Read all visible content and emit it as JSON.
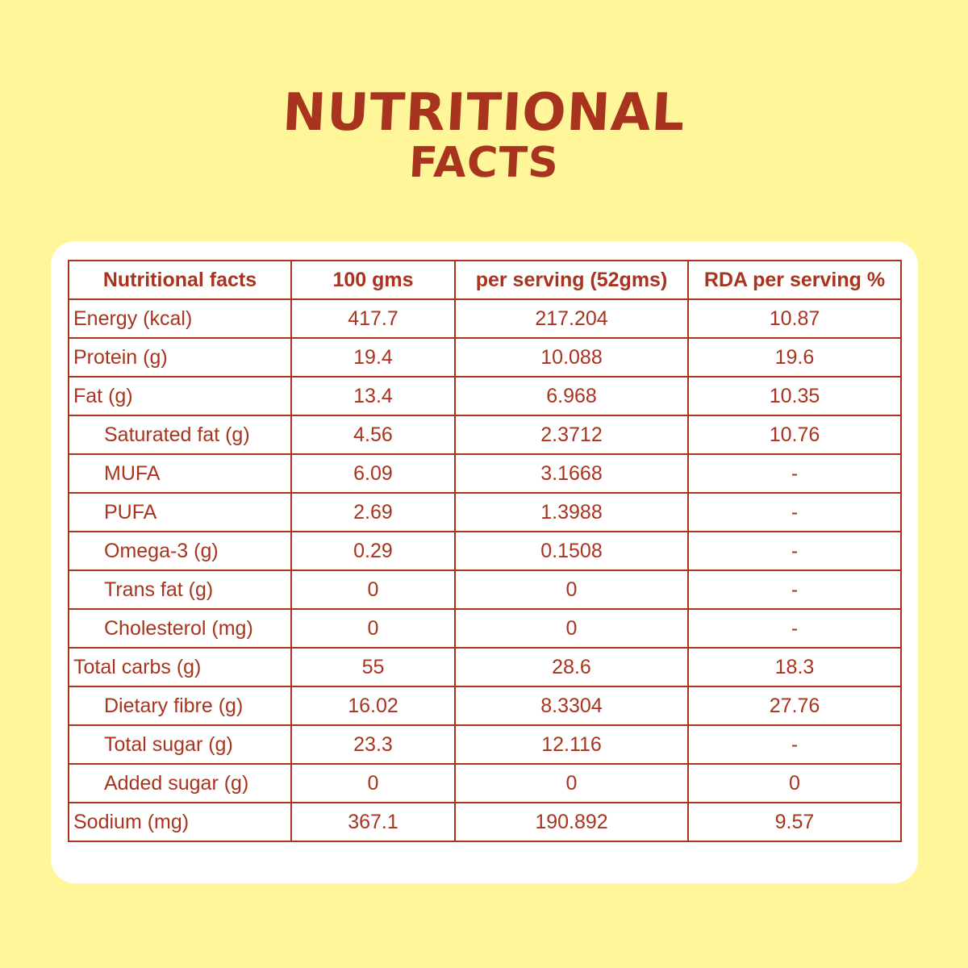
{
  "title": {
    "line1": "Nutritional",
    "line2": "Facts"
  },
  "colors": {
    "background": "#fef699",
    "card": "#ffffff",
    "accent": "#a8341f"
  },
  "table": {
    "headers": [
      "Nutritional facts",
      "100 gms",
      "per serving (52gms)",
      "RDA per serving %"
    ],
    "rows": [
      {
        "name": "Energy (kcal)",
        "indent": false,
        "per100": "417.7",
        "serving": "217.204",
        "rda": "10.87"
      },
      {
        "name": "Protein (g)",
        "indent": false,
        "per100": "19.4",
        "serving": "10.088",
        "rda": "19.6"
      },
      {
        "name": "Fat (g)",
        "indent": false,
        "per100": "13.4",
        "serving": "6.968",
        "rda": "10.35"
      },
      {
        "name": "Saturated fat (g)",
        "indent": true,
        "per100": "4.56",
        "serving": "2.3712",
        "rda": "10.76"
      },
      {
        "name": "MUFA",
        "indent": true,
        "per100": "6.09",
        "serving": "3.1668",
        "rda": "-"
      },
      {
        "name": "PUFA",
        "indent": true,
        "per100": "2.69",
        "serving": "1.3988",
        "rda": "-"
      },
      {
        "name": "Omega-3 (g)",
        "indent": true,
        "per100": "0.29",
        "serving": "0.1508",
        "rda": "-"
      },
      {
        "name": "Trans fat (g)",
        "indent": true,
        "per100": "0",
        "serving": "0",
        "rda": "-"
      },
      {
        "name": "Cholesterol (mg)",
        "indent": true,
        "per100": "0",
        "serving": "0",
        "rda": "-"
      },
      {
        "name": "Total carbs (g)",
        "indent": false,
        "per100": "55",
        "serving": "28.6",
        "rda": "18.3"
      },
      {
        "name": "Dietary fibre (g)",
        "indent": true,
        "per100": "16.02",
        "serving": "8.3304",
        "rda": "27.76"
      },
      {
        "name": "Total sugar (g)",
        "indent": true,
        "per100": "23.3",
        "serving": "12.116",
        "rda": "-"
      },
      {
        "name": "Added sugar (g)",
        "indent": true,
        "per100": "0",
        "serving": "0",
        "rda": "0"
      },
      {
        "name": "Sodium (mg)",
        "indent": false,
        "per100": "367.1",
        "serving": "190.892",
        "rda": "9.57"
      }
    ]
  }
}
